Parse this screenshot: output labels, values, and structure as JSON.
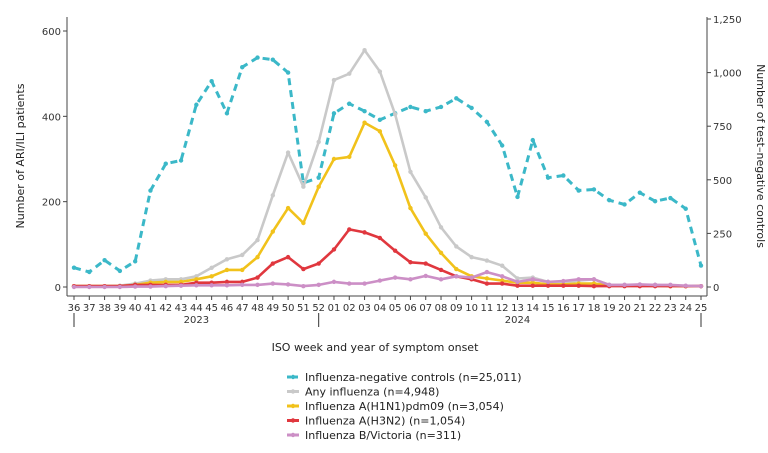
{
  "chart_data": {
    "type": "line",
    "title": "",
    "xlabel": "ISO week and year of symptom onset",
    "ylabel_left": "Number of ARI/ILI patients",
    "ylabel_right": "Number of test–negative controls",
    "ylim_left": [
      0,
      600
    ],
    "ylim_right": [
      0,
      1250
    ],
    "yticks_left": [
      "0",
      "200",
      "400",
      "600"
    ],
    "yticks_right": [
      "0",
      "250",
      "500",
      "750",
      "1,000",
      "1,250"
    ],
    "categories": [
      "36",
      "37",
      "38",
      "39",
      "40",
      "41",
      "42",
      "43",
      "44",
      "45",
      "46",
      "47",
      "48",
      "49",
      "50",
      "51",
      "52",
      "01",
      "02",
      "03",
      "04",
      "05",
      "06",
      "07",
      "08",
      "09",
      "10",
      "11",
      "12",
      "13",
      "14",
      "15",
      "16",
      "17",
      "18",
      "19",
      "20",
      "21",
      "22",
      "23",
      "24",
      "25"
    ],
    "years": [
      {
        "label": "2023",
        "start": "36",
        "end": "52"
      },
      {
        "label": "2024",
        "start": "01",
        "end": "25"
      }
    ],
    "legend_position": "bottom",
    "series": [
      {
        "name": "Influenza-negative controls (n=25,011)",
        "axis": "right",
        "color": "#3bb8c8",
        "dashed": true,
        "values": [
          90,
          70,
          125,
          75,
          120,
          450,
          575,
          590,
          850,
          960,
          810,
          1025,
          1070,
          1060,
          1000,
          485,
          510,
          810,
          855,
          820,
          780,
          810,
          840,
          820,
          840,
          880,
          835,
          770,
          660,
          420,
          685,
          510,
          520,
          450,
          455,
          405,
          385,
          440,
          400,
          415,
          365,
          100
        ]
      },
      {
        "name": "Any influenza (n=4,948)",
        "axis": "left",
        "color": "#c9c9c9",
        "dashed": false,
        "values": [
          2,
          2,
          2,
          3,
          8,
          15,
          18,
          18,
          25,
          45,
          65,
          75,
          110,
          215,
          315,
          235,
          340,
          485,
          500,
          555,
          505,
          405,
          270,
          210,
          140,
          95,
          70,
          62,
          50,
          20,
          22,
          12,
          10,
          15,
          18,
          5,
          5,
          5,
          5,
          3,
          2,
          2
        ]
      },
      {
        "name": "Influenza A(H1N1)pdm09 (n=3,054)",
        "axis": "left",
        "color": "#f1c21b",
        "dashed": false,
        "values": [
          2,
          2,
          2,
          2,
          5,
          10,
          12,
          12,
          18,
          25,
          40,
          40,
          70,
          130,
          185,
          150,
          235,
          300,
          305,
          385,
          365,
          285,
          185,
          125,
          80,
          42,
          25,
          20,
          15,
          10,
          10,
          6,
          6,
          8,
          8,
          4,
          3,
          3,
          3,
          2,
          2,
          2
        ]
      },
      {
        "name": "Influenza A(H3N2) (n=1,054)",
        "axis": "left",
        "color": "#e0373e",
        "dashed": false,
        "values": [
          2,
          2,
          2,
          2,
          5,
          5,
          5,
          5,
          10,
          10,
          12,
          12,
          22,
          55,
          70,
          42,
          55,
          88,
          135,
          128,
          115,
          85,
          58,
          55,
          40,
          25,
          18,
          8,
          8,
          3,
          3,
          3,
          3,
          3,
          2,
          2,
          2,
          2,
          2,
          2,
          2,
          2
        ]
      },
      {
        "name": "Influenza B/Victoria (n=311)",
        "axis": "left",
        "color": "#cc8fc6",
        "dashed": false,
        "values": [
          0,
          0,
          0,
          0,
          1,
          1,
          2,
          3,
          4,
          4,
          4,
          5,
          5,
          8,
          6,
          2,
          5,
          12,
          8,
          8,
          15,
          22,
          18,
          26,
          18,
          25,
          22,
          35,
          25,
          12,
          18,
          12,
          14,
          18,
          18,
          5,
          5,
          6,
          5,
          5,
          3,
          2
        ]
      }
    ]
  }
}
